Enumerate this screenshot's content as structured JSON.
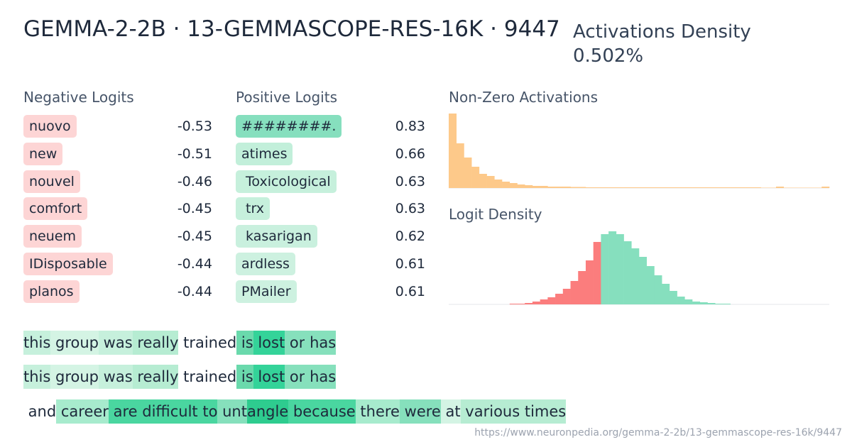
{
  "header": {
    "title": "GEMMA-2-2B · 13-GEMMASCOPE-RES-16K · 9447",
    "density_label": "Activations Density",
    "density_value": "0.502%"
  },
  "negative_logits": {
    "title": "Negative Logits",
    "color": "#fdd5d5",
    "items": [
      {
        "token": "nuovo",
        "value": -0.53
      },
      {
        "token": "new",
        "value": -0.51
      },
      {
        "token": "nouvel",
        "value": -0.46
      },
      {
        "token": "comfort",
        "value": -0.45
      },
      {
        "token": "neuem",
        "value": -0.45
      },
      {
        "token": "IDisposable",
        "value": -0.44
      },
      {
        "token": "planos",
        "value": -0.44
      }
    ]
  },
  "positive_logits": {
    "title": "Positive Logits",
    "items": [
      {
        "token": "########.",
        "value": 0.83,
        "color": "#86dfbe"
      },
      {
        "token": "atimes",
        "value": 0.66,
        "color": "#c2efda"
      },
      {
        "token": " Toxicological",
        "value": 0.63,
        "color": "#c6f0dc"
      },
      {
        "token": " trx",
        "value": 0.63,
        "color": "#c6f0dc"
      },
      {
        "token": " kasarigan",
        "value": 0.62,
        "color": "#c9f0de"
      },
      {
        "token": "ardless",
        "value": 0.61,
        "color": "#cdf1e0"
      },
      {
        "token": "PMailer",
        "value": 0.61,
        "color": "#cdf1e0"
      }
    ]
  },
  "chart_data": [
    {
      "type": "bar",
      "title": "Non-Zero Activations",
      "series": [
        {
          "color": "#fdc98a",
          "values": [
            105,
            63,
            43,
            30,
            20,
            17,
            12,
            9,
            7,
            5,
            4,
            3,
            3,
            2,
            2,
            2,
            1.5,
            1.5,
            1,
            1,
            1,
            1,
            1,
            1,
            1,
            1,
            1,
            1,
            1,
            1,
            1,
            1,
            1,
            1,
            1,
            1,
            1,
            1,
            1,
            1,
            1,
            0.5,
            0.5,
            2,
            0.5,
            0.5,
            0.5,
            0.5,
            0.5,
            2
          ]
        }
      ]
    },
    {
      "type": "bar",
      "title": "Logit Density",
      "series": [
        {
          "color": "#fb7d7d",
          "values": [
            0,
            0,
            0,
            0,
            0,
            0,
            0,
            0,
            1,
            1,
            2,
            4,
            7,
            10,
            15,
            22,
            33,
            47,
            62,
            88,
            null,
            null,
            null,
            null,
            null,
            null,
            null,
            null,
            null,
            null,
            null,
            null,
            null,
            null,
            null,
            null,
            null,
            null,
            null,
            null,
            null,
            null,
            null,
            null,
            null,
            null,
            null,
            null,
            null,
            null
          ]
        },
        {
          "color": "#86dfbe",
          "values": [
            null,
            null,
            null,
            null,
            null,
            null,
            null,
            null,
            null,
            null,
            null,
            null,
            null,
            null,
            null,
            null,
            null,
            null,
            null,
            null,
            99,
            103,
            99,
            89,
            79,
            67,
            54,
            41,
            29,
            19,
            11,
            7,
            4,
            3,
            2,
            1,
            1,
            0,
            0,
            0,
            0,
            0,
            0,
            0,
            0,
            0,
            0,
            0,
            0,
            0
          ]
        }
      ]
    }
  ],
  "examples": [
    {
      "tokens": [
        {
          "text": "this",
          "color": "#c6f0dc"
        },
        {
          "text": " group",
          "color": "#d4f4e4"
        },
        {
          "text": " was",
          "color": "#c6f0dc"
        },
        {
          "text": " really",
          "color": "#b6ecd2"
        },
        {
          "text": " trained",
          "color": null
        },
        {
          "text": " is",
          "color": "#6ad9ac"
        },
        {
          "text": " lost",
          "color": "#34d399"
        },
        {
          "text": " or",
          "color": "#86e0bc"
        },
        {
          "text": " has",
          "color": "#86e0bc"
        }
      ]
    },
    {
      "tokens": [
        {
          "text": "this",
          "color": "#c6f0dc"
        },
        {
          "text": " group",
          "color": "#d4f4e4"
        },
        {
          "text": " was",
          "color": "#c6f0dc"
        },
        {
          "text": " really",
          "color": "#b6ecd2"
        },
        {
          "text": " trained",
          "color": null
        },
        {
          "text": " is",
          "color": "#6ad9ac"
        },
        {
          "text": " lost",
          "color": "#34d399"
        },
        {
          "text": " or",
          "color": "#86e0bc"
        },
        {
          "text": " has",
          "color": "#86e0bc"
        }
      ]
    },
    {
      "tokens": [
        {
          "text": " and",
          "color": null
        },
        {
          "text": " career",
          "color": "#a7ebcd"
        },
        {
          "text": " are",
          "color": "#4ad6a0"
        },
        {
          "text": " difficult",
          "color": "#4ad6a0"
        },
        {
          "text": " to",
          "color": "#4ad6a0"
        },
        {
          "text": " unt",
          "color": "#86e0bc"
        },
        {
          "text": "angle",
          "color": "#2ecc8f"
        },
        {
          "text": " because",
          "color": "#4ad6a0"
        },
        {
          "text": " there",
          "color": "#a7ebcd"
        },
        {
          "text": " were",
          "color": "#86e0bc"
        },
        {
          "text": " at",
          "color": "#d4f4e4"
        },
        {
          "text": " various",
          "color": "#b6ecd2"
        },
        {
          "text": " times",
          "color": "#b6ecd2"
        }
      ]
    }
  ],
  "url": "https://www.neuronpedia.org/gemma-2-2b/13-gemmascope-res-16k/9447"
}
